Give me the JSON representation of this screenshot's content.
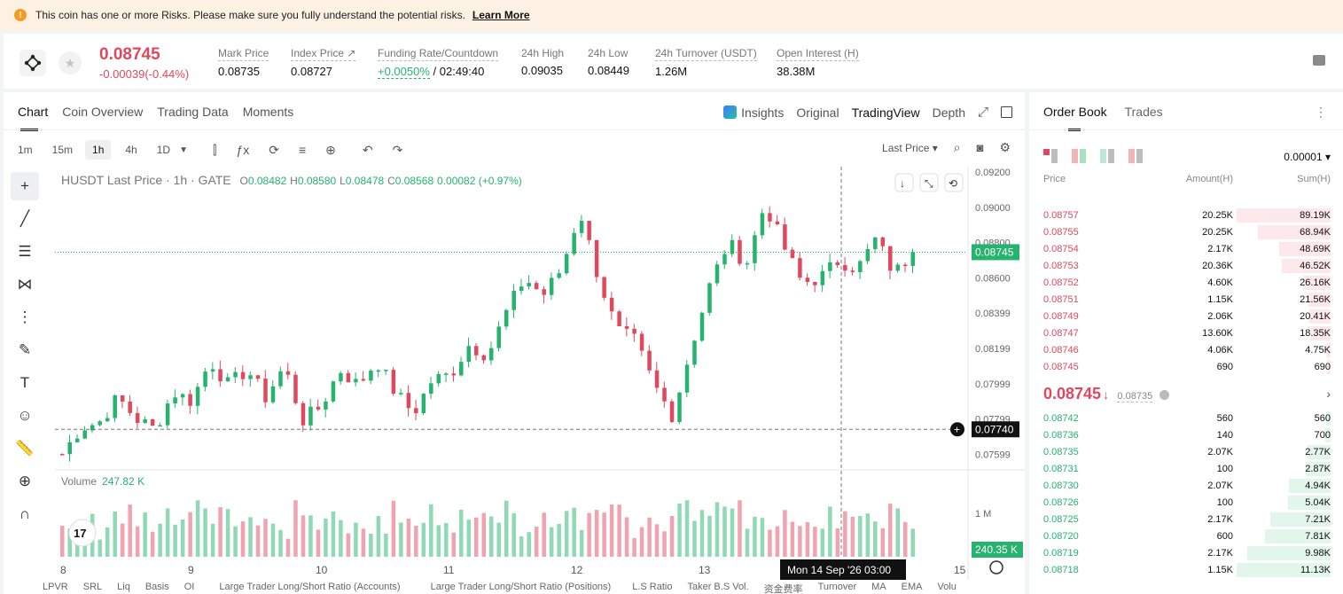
{
  "alert": {
    "text": "This coin has one or more Risks. Please make sure you fully understand the potential risks.",
    "link": "Learn More"
  },
  "ticker": {
    "price": "0.08745",
    "change": "-0.00039(-0.44%)",
    "stats": [
      {
        "label": "Mark Price",
        "value": "0.08735"
      },
      {
        "label": "Index Price ↗",
        "value": "0.08727"
      },
      {
        "label": "Funding Rate/Countdown",
        "value_green": "+0.0050%",
        "value": " / 02:49:40"
      },
      {
        "label": "24h High",
        "value": "0.09035"
      },
      {
        "label": "24h Low",
        "value": "0.08449"
      },
      {
        "label": "24h Turnover (USDT)",
        "value": "1.26M"
      },
      {
        "label": "Open Interest (H)",
        "value": "38.38M"
      }
    ]
  },
  "chart_panel": {
    "tabs": [
      "Chart",
      "Coin Overview",
      "Trading Data",
      "Moments"
    ],
    "right_tabs": [
      "Insights",
      "Original",
      "TradingView",
      "Depth"
    ],
    "intervals": [
      "1m",
      "15m",
      "1h",
      "4h",
      "1D"
    ],
    "price_type": "Last Price ▾",
    "legend": {
      "symbol": "HUSDT Last Price · 1h · GATE",
      "o_label": "O",
      "o": "0.08482",
      "h_label": "H",
      "h": "0.08580",
      "l_label": "L",
      "l": "0.08478",
      "c_label": "C",
      "c": "0.08568",
      "chg": "0.00082 (+0.97%)"
    },
    "volume_label": "Volume",
    "volume_value": "247.82 K",
    "bottom_tabs": [
      "LPVR",
      "SRL",
      "Liq",
      "Basis",
      "OI",
      "Large Trader Long/Short Ratio (Accounts)",
      "Large Trader Long/Short Ratio (Positions)",
      "L.S Ratio",
      "Taker B.S Vol.",
      "资金费率",
      "Turnover",
      "MA",
      "EMA",
      "Volu"
    ]
  },
  "chart_data": {
    "type": "candlestick",
    "title": "HUSDT Last Price · 1h · GATE",
    "y_ticks": [
      "0.09200",
      "0.09000",
      "0.08800",
      "0.08600",
      "0.08399",
      "0.08199",
      "0.07999",
      "0.07799",
      "0.07599"
    ],
    "x_ticks": [
      "8",
      "9",
      "10",
      "11",
      "12",
      "13",
      "14",
      "15"
    ],
    "ylim": [
      0.0753,
      0.0921
    ],
    "current_price_label": "0.08745",
    "crosshair_price_label": "0.07740",
    "crosshair_time_label": "Mon 14 Sep '26   03:00",
    "volume_axis_label": "1 M",
    "volume_current_label": "240.35 K",
    "anchor_prices": [
      0.076,
      0.0775,
      0.0778,
      0.0792,
      0.078,
      0.0774,
      0.0795,
      0.079,
      0.0813,
      0.0799,
      0.0808,
      0.0792,
      0.081,
      0.0779,
      0.0787,
      0.0808,
      0.0799,
      0.0813,
      0.0795,
      0.0783,
      0.0802,
      0.0805,
      0.0822,
      0.0816,
      0.084,
      0.086,
      0.085,
      0.0865,
      0.0898,
      0.086,
      0.083,
      0.0824,
      0.0799,
      0.0782,
      0.082,
      0.0855,
      0.088,
      0.0868,
      0.0902,
      0.0878,
      0.0857,
      0.086,
      0.087,
      0.0865,
      0.0882,
      0.0862,
      0.0875
    ],
    "candle_count": 114
  },
  "orderbook": {
    "tabs": [
      "Order Book",
      "Trades"
    ],
    "precision": "0.00001 ▾",
    "headers": [
      "Price",
      "Amount(H)",
      "Sum(H)"
    ],
    "asks": [
      {
        "p": "0.08757",
        "a": "20.25K",
        "s": "89.19K",
        "d": 1.0
      },
      {
        "p": "0.08755",
        "a": "20.25K",
        "s": "68.94K",
        "d": 0.77
      },
      {
        "p": "0.08754",
        "a": "2.17K",
        "s": "48.69K",
        "d": 0.55
      },
      {
        "p": "0.08753",
        "a": "20.36K",
        "s": "46.52K",
        "d": 0.52
      },
      {
        "p": "0.08752",
        "a": "4.60K",
        "s": "26.16K",
        "d": 0.29
      },
      {
        "p": "0.08751",
        "a": "1.15K",
        "s": "21.56K",
        "d": 0.24
      },
      {
        "p": "0.08749",
        "a": "2.06K",
        "s": "20.41K",
        "d": 0.23
      },
      {
        "p": "0.08747",
        "a": "13.60K",
        "s": "18.35K",
        "d": 0.21
      },
      {
        "p": "0.08746",
        "a": "4.06K",
        "s": "4.75K",
        "d": 0.05
      },
      {
        "p": "0.08745",
        "a": "690",
        "s": "690",
        "d": 0.01
      }
    ],
    "mid_price": "0.08745",
    "mid_arrow": "↓",
    "mid_mark": "0.08735",
    "bids": [
      {
        "p": "0.08742",
        "a": "560",
        "s": "560",
        "d": 0.05
      },
      {
        "p": "0.08736",
        "a": "140",
        "s": "700",
        "d": 0.06
      },
      {
        "p": "0.08735",
        "a": "2.07K",
        "s": "2.77K",
        "d": 0.25
      },
      {
        "p": "0.08731",
        "a": "100",
        "s": "2.87K",
        "d": 0.26
      },
      {
        "p": "0.08730",
        "a": "2.07K",
        "s": "4.94K",
        "d": 0.44
      },
      {
        "p": "0.08726",
        "a": "100",
        "s": "5.04K",
        "d": 0.45
      },
      {
        "p": "0.08725",
        "a": "2.17K",
        "s": "7.21K",
        "d": 0.64
      },
      {
        "p": "0.08720",
        "a": "600",
        "s": "7.81K",
        "d": 0.7
      },
      {
        "p": "0.08719",
        "a": "2.17K",
        "s": "9.98K",
        "d": 0.89
      },
      {
        "p": "0.08718",
        "a": "1.15K",
        "s": "11.13K",
        "d": 1.0
      }
    ]
  },
  "colors": {
    "up": "#25b36e",
    "down": "#e0485d"
  }
}
